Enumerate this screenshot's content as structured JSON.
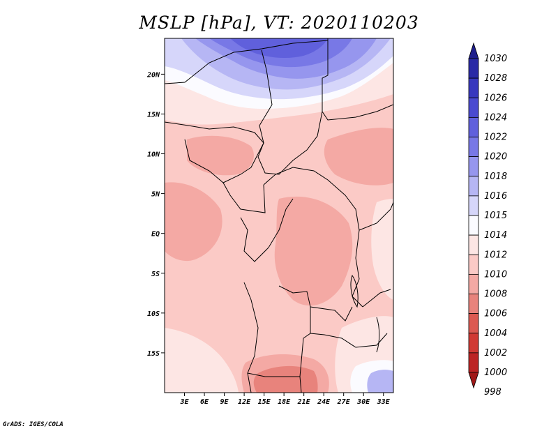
{
  "title": "MSLP [hPa], VT: 2020110203",
  "credit": "GrADS: IGES/COLA",
  "map": {
    "lat_range": [
      -20,
      24.5
    ],
    "lon_range": [
      0,
      34.5
    ],
    "lat_ticks": [
      {
        "value": 20,
        "label": "20N"
      },
      {
        "value": 15,
        "label": "15N"
      },
      {
        "value": 10,
        "label": "10N"
      },
      {
        "value": 5,
        "label": "5N"
      },
      {
        "value": 0,
        "label": "EQ"
      },
      {
        "value": -5,
        "label": "5S"
      },
      {
        "value": -10,
        "label": "10S"
      },
      {
        "value": -15,
        "label": "15S"
      }
    ],
    "lon_ticks": [
      {
        "value": 3,
        "label": "3E"
      },
      {
        "value": 6,
        "label": "6E"
      },
      {
        "value": 9,
        "label": "9E"
      },
      {
        "value": 12,
        "label": "12E"
      },
      {
        "value": 15,
        "label": "15E"
      },
      {
        "value": 18,
        "label": "18E"
      },
      {
        "value": 21,
        "label": "21E"
      },
      {
        "value": 24,
        "label": "24E"
      },
      {
        "value": 27,
        "label": "27E"
      },
      {
        "value": 30,
        "label": "30E"
      },
      {
        "value": 33,
        "label": "33E"
      }
    ]
  },
  "colorbar": {
    "levels": [
      {
        "label": "1030",
        "color": "#1e1e8c"
      },
      {
        "label": "1028",
        "color": "#2a2aa6"
      },
      {
        "label": "1026",
        "color": "#3838be"
      },
      {
        "label": "1024",
        "color": "#4a4ad0"
      },
      {
        "label": "1022",
        "color": "#6060dc"
      },
      {
        "label": "1020",
        "color": "#7878e6"
      },
      {
        "label": "1018",
        "color": "#9696ee"
      },
      {
        "label": "1016",
        "color": "#b6b6f4"
      },
      {
        "label": "1015",
        "color": "#d6d6fa"
      },
      {
        "label": "1014",
        "color": "#fbfbff"
      },
      {
        "label": "1012",
        "color": "#fde6e4"
      },
      {
        "label": "1010",
        "color": "#fbcac6"
      },
      {
        "label": "1008",
        "color": "#f4a9a4"
      },
      {
        "label": "1006",
        "color": "#e8837c"
      },
      {
        "label": "1004",
        "color": "#dc5a52"
      },
      {
        "label": "1002",
        "color": "#d03a34"
      },
      {
        "label": "1000",
        "color": "#bc2424"
      },
      {
        "label": "998",
        "color": "#a01818"
      }
    ]
  }
}
